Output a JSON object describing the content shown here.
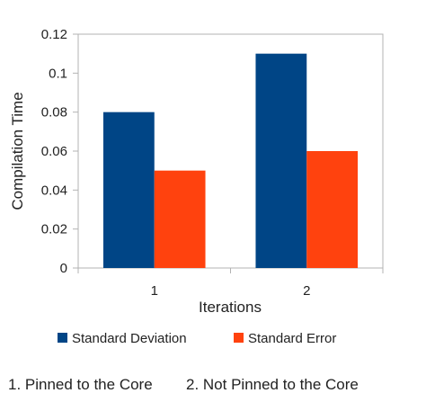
{
  "chart_data": {
    "type": "bar",
    "categories": [
      "1",
      "2"
    ],
    "series": [
      {
        "name": "Standard Deviation",
        "values": [
          0.08,
          0.11
        ],
        "color": "#004586"
      },
      {
        "name": "Standard Error",
        "values": [
          0.05,
          0.06
        ],
        "color": "#ff420e"
      }
    ],
    "xlabel": "Iterations",
    "ylabel": "Compilation Time",
    "ylim": [
      0,
      0.12
    ],
    "yticks": [
      "0",
      "0.02",
      "0.04",
      "0.06",
      "0.08",
      "0.1",
      "0.12"
    ],
    "grid": false,
    "legend_position": "bottom"
  },
  "footnotes": {
    "item1": "1. Pinned to the Core",
    "item2": "2.  Not Pinned to the Core"
  }
}
